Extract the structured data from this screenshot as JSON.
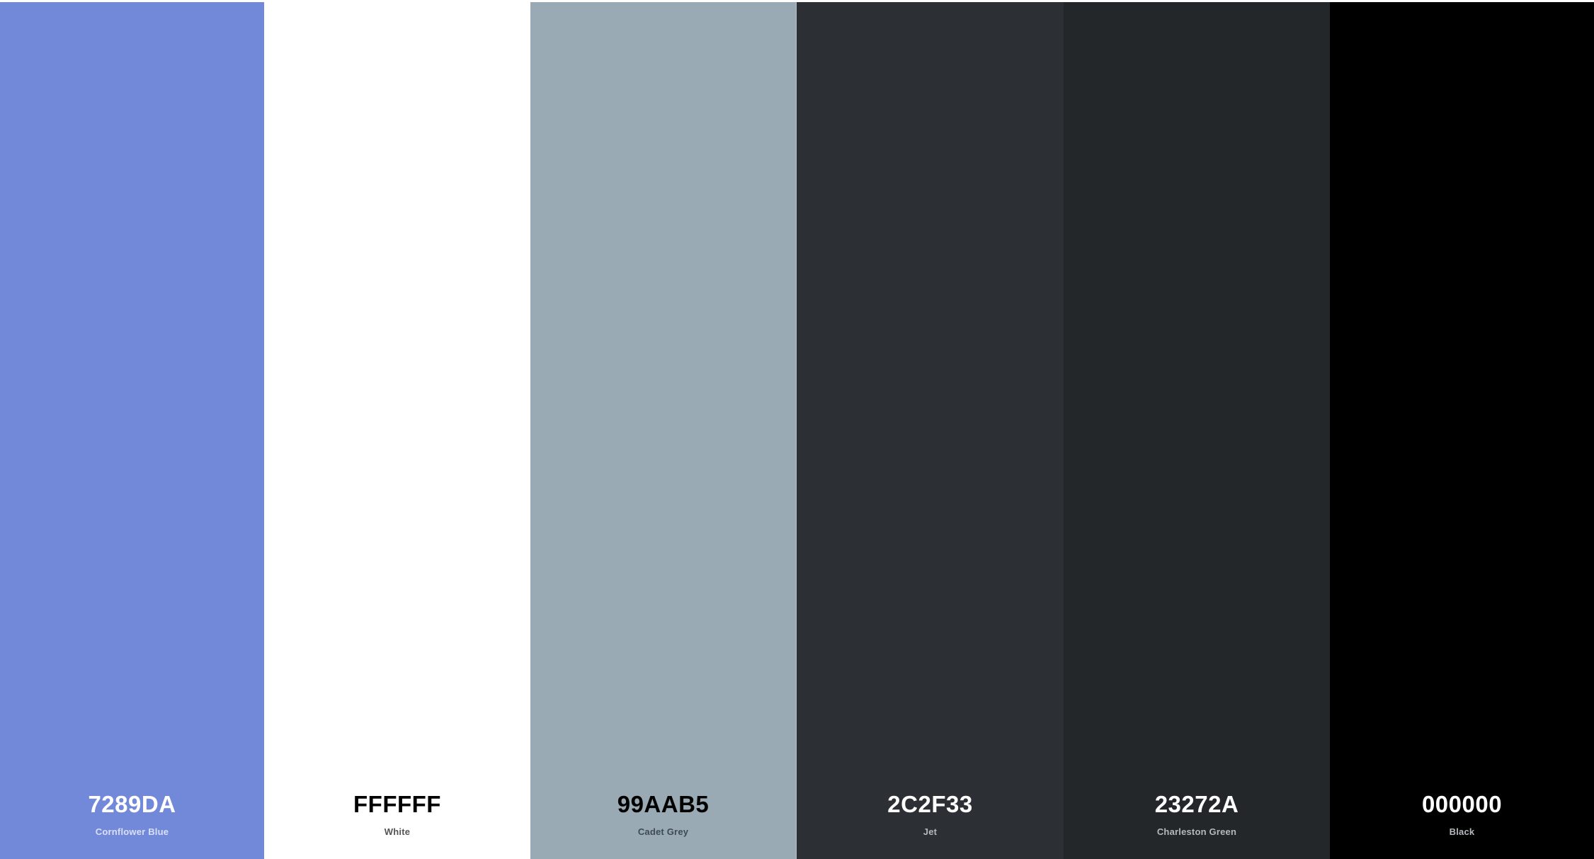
{
  "palette": {
    "colors": [
      {
        "hex": "7289DA",
        "name": "Cornflower Blue",
        "bg": "#7289DA",
        "hex_color": "#FFFFFF",
        "name_color": "#D9E0F6"
      },
      {
        "hex": "FFFFFF",
        "name": "White",
        "bg": "#FFFFFF",
        "hex_color": "#000000",
        "name_color": "#555555"
      },
      {
        "hex": "99AAB5",
        "name": "Cadet Grey",
        "bg": "#99AAB5",
        "hex_color": "#000000",
        "name_color": "#3E4A52"
      },
      {
        "hex": "2C2F33",
        "name": "Jet",
        "bg": "#2C2F33",
        "hex_color": "#FFFFFF",
        "name_color": "#B5B8BC"
      },
      {
        "hex": "23272A",
        "name": "Charleston Green",
        "bg": "#23272A",
        "hex_color": "#FFFFFF",
        "name_color": "#B5B8BC"
      },
      {
        "hex": "000000",
        "name": "Black",
        "bg": "#000000",
        "hex_color": "#FFFFFF",
        "name_color": "#B5B8BC"
      }
    ]
  }
}
